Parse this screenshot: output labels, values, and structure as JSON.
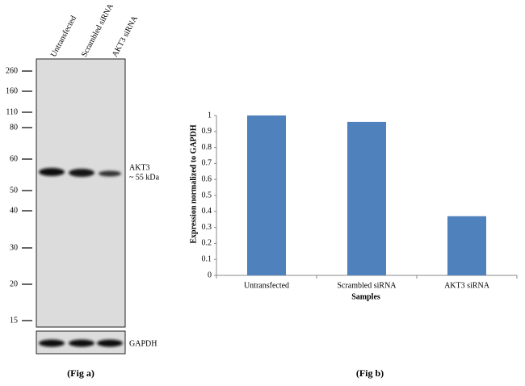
{
  "blot": {
    "lanes": [
      "Untransfected",
      "Scrambled siRNA",
      "AKT3 siRNA"
    ],
    "markers": [
      260,
      160,
      110,
      80,
      60,
      50,
      40,
      30,
      20,
      15
    ],
    "band_label": "AKT3",
    "band_size": "~ 55 kDa",
    "loading_label": "GAPDH",
    "caption": "(Fig a)"
  },
  "chart_data": {
    "type": "bar",
    "caption": "(Fig b)",
    "categories": [
      "Untransfected",
      "Scrambled siRNA",
      "AKT3 siRNA"
    ],
    "values": [
      1,
      0.96,
      0.37
    ],
    "color": "#4f81bd",
    "xlabel": "Samples",
    "ylabel": "Expression  normalized to GAPDH",
    "ylim": [
      0,
      1
    ],
    "yticks": [
      0,
      0.1,
      0.2,
      0.3,
      0.4,
      0.5,
      0.6,
      0.7,
      0.8,
      0.9,
      1
    ],
    "grid": false
  }
}
